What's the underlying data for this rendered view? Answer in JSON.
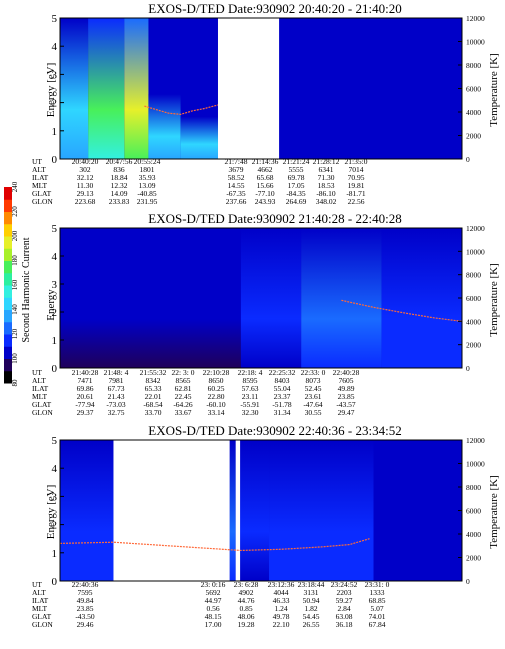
{
  "colors": {
    "background": "#ffffff",
    "trace": "#ff6a3a",
    "scale": [
      "#000000",
      "#1f005a",
      "#0000c8",
      "#0a2bff",
      "#1a6bff",
      "#28a6ff",
      "#2fd6ff",
      "#33f0e0",
      "#2cf0a0",
      "#48f05a",
      "#a8f02a",
      "#e6f02a",
      "#ffd000",
      "#ff8a00",
      "#ff3a00",
      "#e00000"
    ]
  },
  "colorbar": {
    "label": "Second Harmonic Current",
    "ticks": [
      "80",
      "100",
      "120",
      "140",
      "160",
      "180",
      "200",
      "220",
      "240"
    ]
  },
  "chart_data": [
    {
      "type": "heatmap",
      "title": "EXOS-D/TED   Date:930902  20:40:20 - 21:40:20",
      "ylabel": "Energy [eV]",
      "y2label": "Temperature [K]",
      "yticks": [
        "0",
        "1",
        "2",
        "3",
        "4",
        "5"
      ],
      "y2ticks": [
        "0",
        "2000",
        "4000",
        "6000",
        "8000",
        "10000",
        "12000"
      ],
      "ylim": [
        0,
        5
      ],
      "y2lim": [
        0,
        12000
      ],
      "data_gaps": [
        [
          0.393,
          0.545
        ]
      ],
      "spectrogram": [
        {
          "x0": 0.0,
          "x1": 0.07,
          "level": 0.43,
          "top": 5.0
        },
        {
          "x0": 0.07,
          "x1": 0.16,
          "level": 0.58,
          "top": 5.0
        },
        {
          "x0": 0.16,
          "x1": 0.22,
          "level": 0.7,
          "top": 5.0
        },
        {
          "x0": 0.22,
          "x1": 0.3,
          "level": 0.43,
          "top": 2.3
        },
        {
          "x0": 0.3,
          "x1": 0.393,
          "level": 0.38,
          "top": 1.5
        },
        {
          "x0": 0.545,
          "x1": 1.0,
          "level": 0.12,
          "top": 5.0
        }
      ],
      "temperature_trace": {
        "x": [
          0.21,
          0.24,
          0.27,
          0.3,
          0.33,
          0.36,
          0.393
        ],
        "y": [
          4500,
          4200,
          3900,
          3800,
          4100,
          4300,
          4600
        ]
      },
      "table": {
        "row_labels": [
          "UT",
          "ALT",
          "ILAT",
          "MLT",
          "GLAT",
          "GLON"
        ],
        "columns": [
          {
            "values": [
              "20:40:20",
              "302",
              "32.12",
              "11.30",
              "29.13",
              "223.68"
            ]
          },
          {
            "values": [
              "20:47:56",
              "836",
              "18.84",
              "12.32",
              "14.09",
              "233.83"
            ]
          },
          {
            "values": [
              "20:55:24",
              "1801",
              "35.93",
              "13.09",
              "-40.85",
              "231.95"
            ]
          },
          {
            "values": [
              "21:7:48",
              "3679",
              "58.52",
              "14.55",
              "-67.35",
              "237.66"
            ]
          },
          {
            "values": [
              "21:14:36",
              "4662",
              "65.68",
              "15.66",
              "-77.10",
              "243.93"
            ]
          },
          {
            "values": [
              "21:21:24",
              "5555",
              "69.78",
              "17.05",
              "-84.35",
              "264.69"
            ]
          },
          {
            "values": [
              "21:28:12",
              "6341",
              "71.30",
              "18.53",
              "-86.10",
              "348.02"
            ]
          },
          {
            "values": [
              "21:35:0",
              "7014",
              "70.95",
              "19.81",
              "-81.71",
              "22.56"
            ]
          }
        ]
      }
    },
    {
      "type": "heatmap",
      "title": "EXOS-D/TED   Date:930902  21:40:28 - 22:40:28",
      "ylabel": "Energy",
      "y2label": "Temperature [K]",
      "yticks": [
        "0",
        "1",
        "2",
        "3",
        "4",
        "5"
      ],
      "y2ticks": [
        "0",
        "2000",
        "4000",
        "6000",
        "8000",
        "10000",
        "12000"
      ],
      "ylim": [
        0,
        5
      ],
      "y2lim": [
        0,
        12000
      ],
      "data_gaps": [],
      "spectrogram": [
        {
          "x0": 0.0,
          "x1": 0.45,
          "level": 0.1,
          "top": 5.0
        },
        {
          "x0": 0.45,
          "x1": 0.6,
          "level": 0.18,
          "top": 5.0
        },
        {
          "x0": 0.6,
          "x1": 0.8,
          "level": 0.25,
          "top": 5.0
        },
        {
          "x0": 0.8,
          "x1": 1.0,
          "level": 0.2,
          "top": 5.0
        }
      ],
      "temperature_trace": {
        "x": [
          0.7,
          0.78,
          0.86,
          0.93,
          1.0
        ],
        "y": [
          5800,
          5200,
          4700,
          4300,
          4000
        ]
      },
      "table": {
        "row_labels": [
          "UT",
          "ALT",
          "ILAT",
          "MLT",
          "GLAT",
          "GLON"
        ],
        "columns": [
          {
            "values": [
              "21:40:28",
              "7471",
              "69.86",
              "20.61",
              "-77.94",
              "29.37"
            ]
          },
          {
            "values": [
              "21:48: 4",
              "7981",
              "67.73",
              "21.43",
              "-73.03",
              "32.75"
            ]
          },
          {
            "values": [
              "21:55:32",
              "8342",
              "65.33",
              "22.01",
              "-68.54",
              "33.70"
            ]
          },
          {
            "values": [
              "22: 3: 0",
              "8565",
              "62.81",
              "22.45",
              "-64.26",
              "33.67"
            ]
          },
          {
            "values": [
              "22:10:28",
              "8650",
              "60.25",
              "22.80",
              "-60.10",
              "33.14"
            ]
          },
          {
            "values": [
              "22:18: 4",
              "8595",
              "57.63",
              "23.11",
              "-55.91",
              "32.30"
            ]
          },
          {
            "values": [
              "22:25:32",
              "8403",
              "55.04",
              "23.37",
              "-51.78",
              "31.34"
            ]
          },
          {
            "values": [
              "22:33: 0",
              "8073",
              "52.45",
              "23.61",
              "-47.64",
              "30.55"
            ]
          },
          {
            "values": [
              "22:40:28",
              "7605",
              "49.89",
              "23.85",
              "-43.57",
              "29.47"
            ]
          }
        ]
      }
    },
    {
      "type": "heatmap",
      "title": "EXOS-D/TED   Date:930902  22:40:36 - 23:34:52",
      "ylabel": "Energy [eV]",
      "y2label": "Temperature [K]",
      "yticks": [
        "0",
        "1",
        "2",
        "3",
        "4",
        "5"
      ],
      "y2ticks": [
        "0",
        "2000",
        "4000",
        "6000",
        "8000",
        "10000",
        "12000"
      ],
      "ylim": [
        0,
        5
      ],
      "y2lim": [
        0,
        12000
      ],
      "data_gaps": [
        [
          0.133,
          0.422
        ],
        [
          0.437,
          0.448
        ]
      ],
      "spectrogram": [
        {
          "x0": 0.0,
          "x1": 0.133,
          "level": 0.2,
          "top": 5.0
        },
        {
          "x0": 0.422,
          "x1": 0.437,
          "level": 0.25,
          "top": 5.0
        },
        {
          "x0": 0.448,
          "x1": 0.52,
          "level": 0.18,
          "top": 5.0
        },
        {
          "x0": 0.52,
          "x1": 0.78,
          "level": 0.2,
          "top": 5.0
        },
        {
          "x0": 0.78,
          "x1": 0.85,
          "level": 0.12,
          "top": 5.0
        },
        {
          "x0": 0.85,
          "x1": 1.0,
          "level": 0.15,
          "top": 5.0
        }
      ],
      "temperature_trace": {
        "x": [
          0.0,
          0.133,
          0.45,
          0.55,
          0.65,
          0.72,
          0.77
        ],
        "y": [
          3200,
          3300,
          2600,
          2700,
          2900,
          3100,
          3600
        ]
      },
      "table": {
        "row_labels": [
          "UT",
          "ALT",
          "ILAT",
          "MLT",
          "GLAT",
          "GLON"
        ],
        "columns": [
          {
            "values": [
              "22:40:36",
              "7595",
              "49.84",
              "23.85",
              "-43.50",
              "29.46"
            ]
          },
          {
            "values": [
              "23: 0:16",
              "5692",
              "44.97",
              "0.56",
              "48.15",
              "17.00"
            ]
          },
          {
            "values": [
              "23: 6:28",
              "4902",
              "44.76",
              "0.85",
              "48.06",
              "19.28"
            ]
          },
          {
            "values": [
              "23:12:36",
              "4044",
              "46.33",
              "1.24",
              "49.78",
              "22.10"
            ]
          },
          {
            "values": [
              "23:18:44",
              "3131",
              "50.94",
              "1.82",
              "54.45",
              "26.55"
            ]
          },
          {
            "values": [
              "23:24:52",
              "2203",
              "59.27",
              "2.84",
              "63.08",
              "36.18"
            ]
          },
          {
            "values": [
              "23:31: 0",
              "1333",
              "68.85",
              "5.07",
              "74.01",
              "67.84"
            ]
          }
        ]
      }
    }
  ]
}
